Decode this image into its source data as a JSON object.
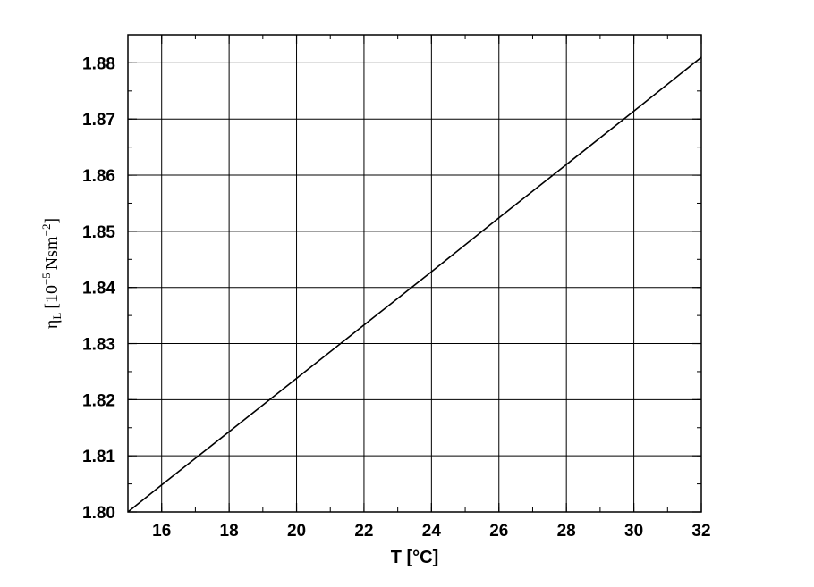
{
  "chart_data": {
    "type": "line",
    "xlabel": "T [°C]",
    "ylabel": {
      "symbol": "η",
      "subscript": "L",
      "open": "[10",
      "exponent": "−5",
      "unit": "Nsm",
      "unit_exponent": "−2",
      "close": "]"
    },
    "xlim": [
      15,
      32
    ],
    "ylim": [
      1.8,
      1.885
    ],
    "x_ticks": [
      16,
      18,
      20,
      22,
      24,
      26,
      28,
      30,
      32
    ],
    "x_tick_labels": [
      "16",
      "18",
      "20",
      "22",
      "24",
      "26",
      "28",
      "30",
      "32"
    ],
    "y_ticks": [
      1.8,
      1.81,
      1.82,
      1.83,
      1.84,
      1.85,
      1.86,
      1.87,
      1.88
    ],
    "y_tick_labels": [
      "1.80",
      "1.81",
      "1.82",
      "1.83",
      "1.84",
      "1.85",
      "1.86",
      "1.87",
      "1.88"
    ],
    "grid": true,
    "series": [
      {
        "x": [
          15,
          16,
          18,
          20,
          22,
          24,
          26,
          28,
          30,
          32
        ],
        "y": [
          1.8,
          1.8048,
          1.8143,
          1.8238,
          1.8333,
          1.8428,
          1.8524,
          1.8619,
          1.8714,
          1.881
        ],
        "color": "#000000"
      }
    ]
  }
}
